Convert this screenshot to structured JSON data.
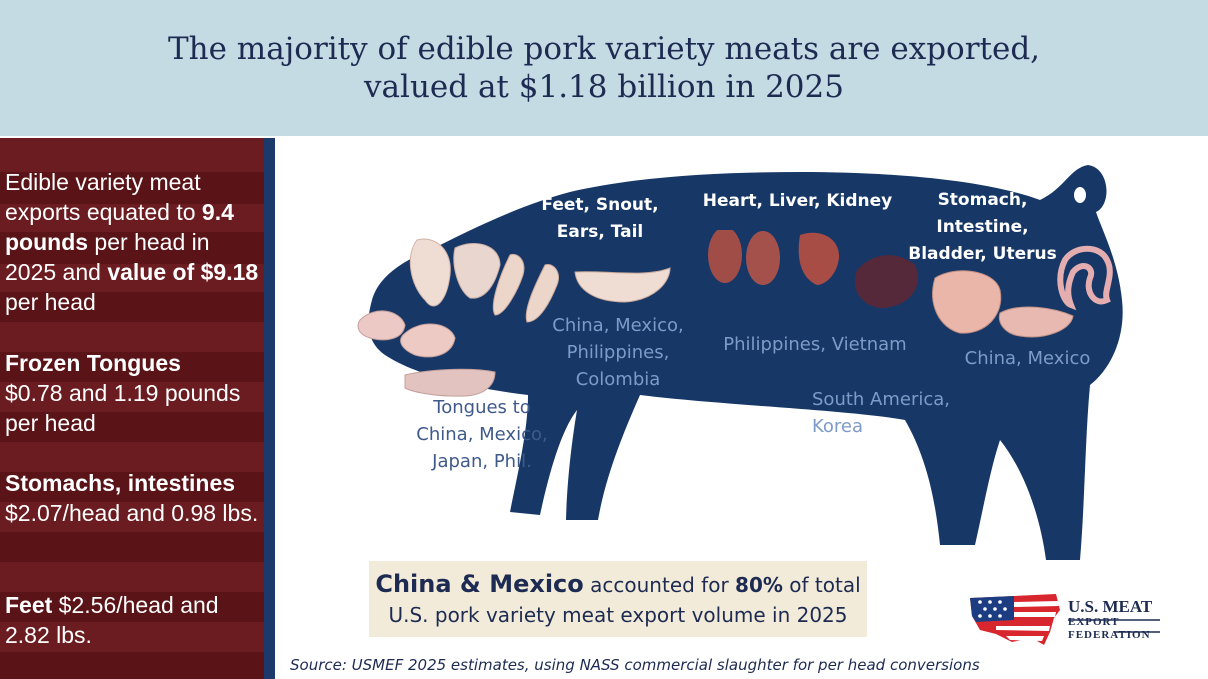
{
  "title": {
    "line1": "The majority of edible pork variety meats are exported,",
    "line2": "valued at $1.18 billion in 2025"
  },
  "sidebar": {
    "block1": {
      "t1": "Edible variety meat exports equated to ",
      "b1": "9.4 pounds",
      "t2": " per head in 2025 and ",
      "b2": "value of $9.18",
      "t3": " per head"
    },
    "block2": {
      "heading": "Frozen Tongues",
      "text": "$0.78 and 1.19 pounds per head"
    },
    "block3": {
      "heading": "Stomachs, intestines",
      "text": "$2.07/head and 0.98 lbs."
    },
    "block4": {
      "heading": "Feet",
      "text": " $2.56/head and 2.82 lbs."
    }
  },
  "categories": {
    "feet": [
      "Feet, Snout,",
      "Ears, Tail"
    ],
    "organs": "Heart, Liver, Kidney",
    "stomach": [
      "Stomach,",
      "Intestine,",
      "Bladder, Uterus"
    ]
  },
  "destinations": {
    "feet": [
      "China, Mexico,",
      "Philippines,",
      "Colombia"
    ],
    "organs": "Philippines, Vietnam",
    "stomach": "China, Mexico",
    "tongues": [
      "Tongues to",
      "China, Mexico,",
      "Japan, Phil."
    ],
    "other": [
      "South America,",
      "Korea"
    ]
  },
  "callout": {
    "lead": "China & Mexico",
    "mid": " accounted for ",
    "pct": "80%",
    "tail": " of total",
    "line2": "U.S. pork variety meat export volume in 2025"
  },
  "source": "Source: USMEF 2025 estimates, using NASS commercial slaughter for per head conversions",
  "logo": {
    "line1": "U.S. MEAT",
    "line2": "EXPORT",
    "line3": "FEDERATION"
  },
  "colors": {
    "header_bg": "#c5dbe4",
    "title_text": "#1d2b52",
    "sidebar_bg": "#6b1c21",
    "pig_body": "#173867",
    "destination_text": "#7e9bc7",
    "callout_bg": "#f3ebd9"
  }
}
